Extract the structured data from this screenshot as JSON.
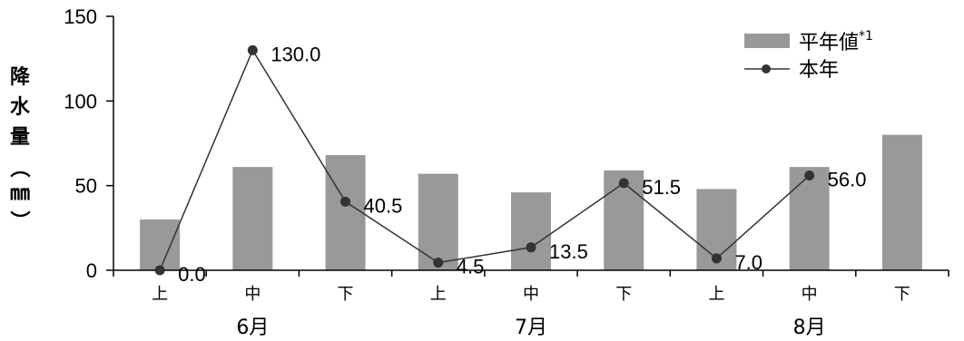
{
  "chart_data": {
    "type": "bar",
    "ylabel": "降水量（㎜）",
    "ylabel_chars": [
      "降",
      "水",
      "量",
      "（",
      "㎜",
      "）"
    ],
    "ylim": [
      0,
      150
    ],
    "yticks": [
      0,
      50,
      100,
      150
    ],
    "categories": [
      "上",
      "中",
      "下",
      "上",
      "中",
      "下",
      "上",
      "中",
      "下"
    ],
    "months": [
      "6月",
      "7月",
      "8月"
    ],
    "series": [
      {
        "name": "平年値",
        "name_sup": "*1",
        "type": "bar",
        "color": "#999999",
        "values": [
          30,
          61,
          68,
          57,
          46,
          59,
          48,
          61,
          80
        ]
      },
      {
        "name": "本年",
        "type": "line",
        "color": "#333333",
        "values": [
          0.0,
          130.0,
          40.5,
          4.5,
          13.5,
          51.5,
          7.0,
          56.0,
          null
        ],
        "labels": [
          "0.0",
          "130.0",
          "40.5",
          "4.5",
          "13.5",
          "51.5",
          "7.0",
          "56.0",
          ""
        ]
      }
    ],
    "legend_position": "top-right",
    "grid": false
  }
}
